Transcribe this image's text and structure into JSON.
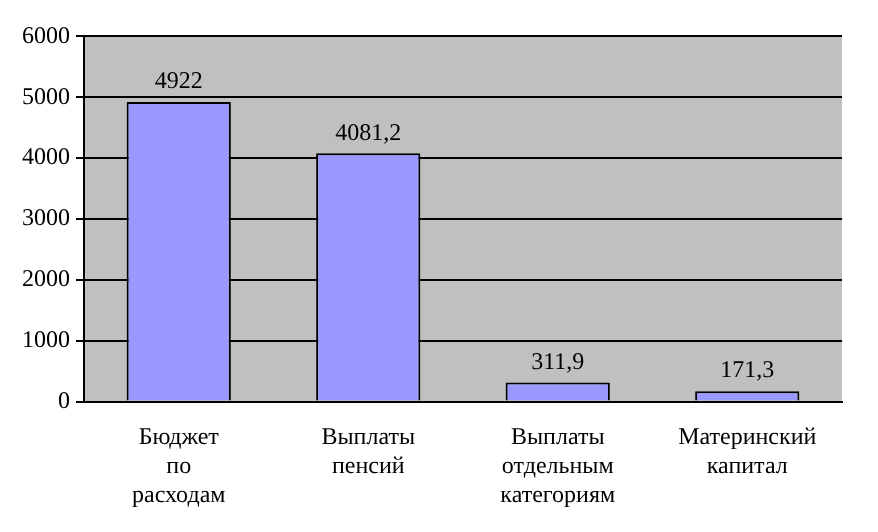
{
  "chart_data": {
    "type": "bar",
    "categories": [
      "Бюджет по расходам",
      "Выплаты пенсий",
      "Выплаты отдельным категориям",
      "Материнский капитал"
    ],
    "values": [
      4922,
      4081.2,
      311.9,
      171.3
    ],
    "color": "#9999ff",
    "value_labels": [
      "4922",
      "4081,2",
      "311,9",
      "171,3"
    ],
    "ylim": [
      0,
      6000
    ],
    "yticks": [
      0,
      1000,
      2000,
      3000,
      4000,
      5000,
      6000
    ],
    "grid": "y",
    "legend": false
  }
}
